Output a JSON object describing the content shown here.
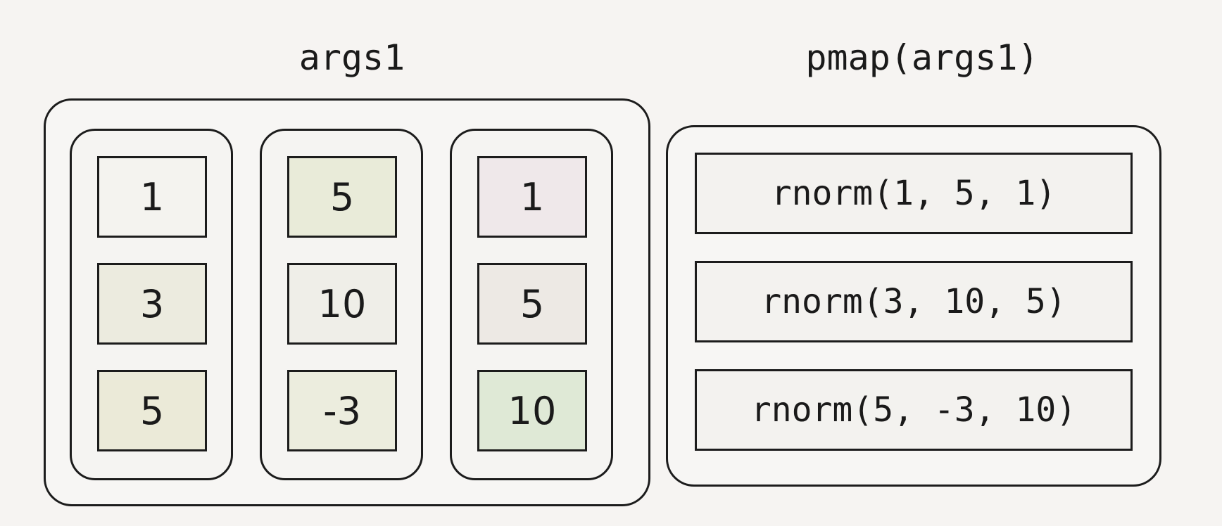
{
  "left_title": "args1",
  "right_title": "pmap(args1)",
  "columns": [
    {
      "values": [
        "1",
        "3",
        "5"
      ],
      "colors": [
        "#f4f3ef",
        "#ecebdf",
        "#ebead8"
      ]
    },
    {
      "values": [
        "5",
        "10",
        "-3"
      ],
      "colors": [
        "#e9ebd9",
        "#efeee8",
        "#ecedde"
      ]
    },
    {
      "values": [
        "1",
        "5",
        "10"
      ],
      "colors": [
        "#efe8ea",
        "#ede9e4",
        "#dfe9d6"
      ]
    }
  ],
  "calls": [
    "rnorm(1, 5, 1)",
    "rnorm(3, 10, 5)",
    "rnorm(5, -3, 10)"
  ]
}
